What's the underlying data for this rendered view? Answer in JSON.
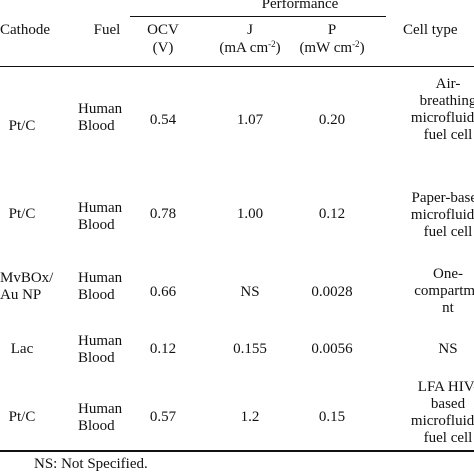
{
  "table": {
    "header": {
      "performance": "Performance",
      "cathode": "Cathode",
      "fuel": "Fuel",
      "ocv": "OCV",
      "ocv_unit": "(V)",
      "j": "J",
      "j_unit_base": "(mA cm",
      "j_unit_exp": "-2",
      "j_unit_close": ")",
      "p": "P",
      "p_unit_base": "(mW cm",
      "p_unit_exp": "-2",
      "p_unit_close": ")",
      "cell_type": "Cell type"
    },
    "rows": [
      {
        "cathode": [
          "Pt/C"
        ],
        "fuel": [
          "Human",
          "Blood"
        ],
        "ocv": "0.54",
        "j": "1.07",
        "p": "0.20",
        "cell_type": [
          "Air-",
          "breathing",
          "microfluidic",
          "fuel cell"
        ]
      },
      {
        "cathode": [
          "Pt/C"
        ],
        "fuel": [
          "Human",
          "Blood"
        ],
        "ocv": "0.78",
        "j": "1.00",
        "p": "0.12",
        "cell_type": [
          "Paper-based",
          "microfluidic",
          "fuel cell"
        ]
      },
      {
        "cathode": [
          "MvBOx/",
          "Au NP"
        ],
        "fuel": [
          "Human",
          "Blood"
        ],
        "ocv": "0.66",
        "j": "NS",
        "p": "0.0028",
        "cell_type": [
          "One-",
          "compartme",
          "nt"
        ]
      },
      {
        "cathode": [
          "Lac"
        ],
        "fuel": [
          "Human",
          "Blood"
        ],
        "ocv": "0.12",
        "j": "0.155",
        "p": "0.0056",
        "cell_type": [
          "NS"
        ]
      },
      {
        "cathode": [
          "Pt/C"
        ],
        "fuel": [
          "Human",
          "Blood"
        ],
        "ocv": "0.57",
        "j": "1.2",
        "p": "0.15",
        "cell_type": [
          "LFA HIV-",
          "based",
          "microfluidic",
          "fuel cell"
        ]
      }
    ],
    "footnote": "NS: Not Specified."
  }
}
